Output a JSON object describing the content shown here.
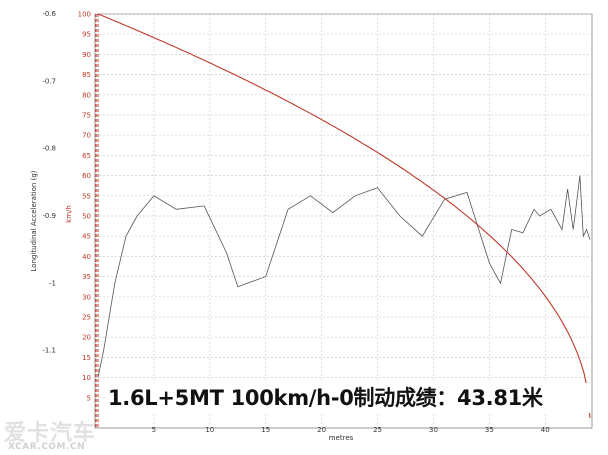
{
  "chart_data": {
    "type": "line",
    "xlabel": "metres",
    "ylabel_left": "Longitudinal Acceleration (g)",
    "ylabel_right": "km/h",
    "xlim": [
      0,
      44
    ],
    "xticks": [
      5,
      10,
      15,
      20,
      25,
      30,
      35,
      40
    ],
    "ylim_left": [
      -1.2,
      -0.6
    ],
    "yticks_left": [
      -0.6,
      -0.7,
      -0.8,
      -0.9,
      -1,
      -1.1
    ],
    "ylim_speed": [
      0,
      100
    ],
    "yticks_speed": [
      100,
      95,
      90,
      85,
      80,
      75,
      70,
      65,
      60,
      55,
      50,
      45,
      40,
      35,
      30,
      25,
      20,
      15,
      10,
      5
    ],
    "grid": true,
    "series": [
      {
        "axis": "left",
        "color": "#555555",
        "x": [
          0,
          0.5,
          1.5,
          2.5,
          3.5,
          5.0,
          7.0,
          9.5,
          11.5,
          12.5,
          15.0,
          17.0,
          19.0,
          21.0,
          23.0,
          25.0,
          27.0,
          29.0,
          31.0,
          33.0,
          35.0,
          36.0,
          37.0,
          38.0,
          39.0,
          39.5,
          40.5,
          41.5,
          42.0,
          42.5,
          42.8,
          43.1,
          43.4,
          43.7,
          44.0
        ],
        "y": [
          -1.14,
          -1.1,
          -1.0,
          -0.93,
          -0.9,
          -0.87,
          -0.89,
          -0.885,
          -0.955,
          -1.005,
          -0.99,
          -0.89,
          -0.87,
          -0.895,
          -0.87,
          -0.858,
          -0.9,
          -0.93,
          -0.875,
          -0.865,
          -0.97,
          -1.0,
          -0.92,
          -0.925,
          -0.89,
          -0.9,
          -0.89,
          -0.92,
          -0.86,
          -0.92,
          -0.88,
          -0.84,
          -0.93,
          -0.92,
          -0.935
        ]
      },
      {
        "axis": "speed",
        "color": "#c0392b",
        "x": [
          0,
          44
        ],
        "y": [
          100,
          0
        ],
        "profile": "sqrt"
      }
    ]
  },
  "caption": "1.6L+5MT 100km/h-0制动成绩：43.81米",
  "watermark": {
    "text": "爱卡汽车",
    "url": "XCAR.COM.CN"
  }
}
